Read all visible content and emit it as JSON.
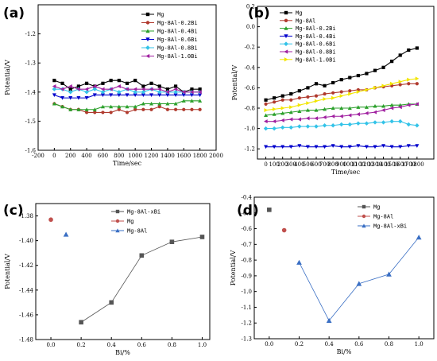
{
  "chart_data": [
    {
      "panel_label": "(a)",
      "type": "line",
      "xlabel": "Time/sec",
      "ylabel": "Potential/V",
      "xlim": [
        -200,
        2000
      ],
      "ylim": [
        -1.6,
        -1.1
      ],
      "xticks": [
        -200,
        0,
        200,
        400,
        600,
        800,
        1000,
        1200,
        1400,
        1600,
        1800,
        2000
      ],
      "xtick_labels": [
        "-200",
        "0",
        "200",
        "400",
        "600",
        "800",
        "1000",
        "1200",
        "1400",
        "1600",
        "1800",
        "2000"
      ],
      "yticks": [
        -1.6,
        -1.5,
        -1.4,
        -1.3,
        -1.2
      ],
      "ytick_labels": [
        "-1.6",
        "-1.5",
        "-1.4",
        "-1.3",
        "-1.2"
      ],
      "series": [
        {
          "name": "Mg",
          "color": "#000000",
          "marker": "square",
          "x": [
            0,
            100,
            200,
            300,
            400,
            500,
            600,
            700,
            800,
            900,
            1000,
            1100,
            1200,
            1300,
            1400,
            1500,
            1600,
            1700,
            1800
          ],
          "y": [
            -1.36,
            -1.37,
            -1.39,
            -1.38,
            -1.37,
            -1.38,
            -1.37,
            -1.36,
            -1.36,
            -1.37,
            -1.36,
            -1.38,
            -1.37,
            -1.38,
            -1.39,
            -1.38,
            -1.4,
            -1.39,
            -1.39
          ]
        },
        {
          "name": "Mg-8Al-0.2Bi",
          "color": "#b03a2e",
          "marker": "circle",
          "x": [
            0,
            100,
            200,
            300,
            400,
            500,
            600,
            700,
            800,
            900,
            1000,
            1100,
            1200,
            1300,
            1400,
            1500,
            1600,
            1700,
            1800
          ],
          "y": [
            -1.44,
            -1.45,
            -1.46,
            -1.46,
            -1.47,
            -1.47,
            -1.47,
            -1.47,
            -1.46,
            -1.47,
            -1.46,
            -1.46,
            -1.46,
            -1.45,
            -1.46,
            -1.46,
            -1.46,
            -1.46,
            -1.46
          ]
        },
        {
          "name": "Mg-8Al-0.4Bi",
          "color": "#2ca02c",
          "marker": "triangle-up",
          "x": [
            0,
            100,
            200,
            300,
            400,
            500,
            600,
            700,
            800,
            900,
            1000,
            1100,
            1200,
            1300,
            1400,
            1500,
            1600,
            1700,
            1800
          ],
          "y": [
            -1.44,
            -1.45,
            -1.46,
            -1.46,
            -1.46,
            -1.46,
            -1.45,
            -1.45,
            -1.45,
            -1.45,
            -1.45,
            -1.44,
            -1.44,
            -1.44,
            -1.44,
            -1.44,
            -1.43,
            -1.43,
            -1.43
          ]
        },
        {
          "name": "Mg-8Al-0.6Bi",
          "color": "#0000cc",
          "marker": "triangle-down",
          "x": [
            0,
            100,
            200,
            300,
            400,
            500,
            600,
            700,
            800,
            900,
            1000,
            1100,
            1200,
            1300,
            1400,
            1500,
            1600,
            1700,
            1800
          ],
          "y": [
            -1.41,
            -1.42,
            -1.42,
            -1.42,
            -1.42,
            -1.41,
            -1.41,
            -1.41,
            -1.41,
            -1.41,
            -1.41,
            -1.41,
            -1.41,
            -1.41,
            -1.41,
            -1.41,
            -1.41,
            -1.41,
            -1.41
          ]
        },
        {
          "name": "Mg-8Al-0.8Bi",
          "color": "#33c3e8",
          "marker": "diamond",
          "x": [
            0,
            100,
            200,
            300,
            400,
            500,
            600,
            700,
            800,
            900,
            1000,
            1100,
            1200,
            1300,
            1400,
            1500,
            1600,
            1700,
            1800
          ],
          "y": [
            -1.39,
            -1.39,
            -1.4,
            -1.39,
            -1.4,
            -1.39,
            -1.4,
            -1.39,
            -1.4,
            -1.39,
            -1.4,
            -1.4,
            -1.39,
            -1.4,
            -1.4,
            -1.4,
            -1.4,
            -1.4,
            -1.4
          ]
        },
        {
          "name": "Mg-8Al-1.0Bi",
          "color": "#a020a0",
          "marker": "triangle-left",
          "x": [
            0,
            100,
            200,
            300,
            400,
            500,
            600,
            700,
            800,
            900,
            1000,
            1100,
            1200,
            1300,
            1400,
            1500,
            1600,
            1700,
            1800
          ],
          "y": [
            -1.38,
            -1.39,
            -1.38,
            -1.39,
            -1.39,
            -1.38,
            -1.39,
            -1.39,
            -1.38,
            -1.39,
            -1.39,
            -1.39,
            -1.39,
            -1.39,
            -1.4,
            -1.39,
            -1.4,
            -1.4,
            -1.4
          ]
        }
      ]
    },
    {
      "panel_label": "(b)",
      "type": "line",
      "xlabel": "Time/sec",
      "ylabel": "Potential/V",
      "xlim": [
        -100,
        2000
      ],
      "ylim": [
        -1.3,
        0.2
      ],
      "xticks": [
        0,
        100,
        200,
        300,
        400,
        500,
        600,
        700,
        800,
        900,
        1000,
        1100,
        1200,
        1300,
        1400,
        1500,
        1600,
        1700,
        1800
      ],
      "xtick_labels": [
        "0",
        "100",
        "200",
        "300",
        "400",
        "500",
        "600",
        "700",
        "800",
        "900",
        "1000",
        "1100",
        "1200",
        "1300",
        "1400",
        "1500",
        "1600",
        "1700",
        "1800"
      ],
      "yticks": [
        -1.2,
        -1.0,
        -0.8,
        -0.6,
        -0.4,
        -0.2,
        0.0,
        0.2
      ],
      "ytick_labels": [
        "-1.2",
        "-1.0",
        "-0.8",
        "-0.6",
        "-0.4",
        "-0.2",
        "0.0",
        "0.2"
      ],
      "series": [
        {
          "name": "Mg",
          "color": "#000000",
          "marker": "square",
          "x": [
            0,
            100,
            200,
            300,
            400,
            500,
            600,
            700,
            800,
            900,
            1000,
            1100,
            1200,
            1300,
            1400,
            1500,
            1600,
            1700,
            1800
          ],
          "y": [
            -0.72,
            -0.7,
            -0.68,
            -0.66,
            -0.63,
            -0.6,
            -0.56,
            -0.58,
            -0.55,
            -0.52,
            -0.5,
            -0.48,
            -0.46,
            -0.43,
            -0.4,
            -0.34,
            -0.28,
            -0.23,
            -0.21
          ]
        },
        {
          "name": "Mg-8Al",
          "color": "#b03a2e",
          "marker": "circle",
          "x": [
            0,
            100,
            200,
            300,
            400,
            500,
            600,
            700,
            800,
            900,
            1000,
            1100,
            1200,
            1300,
            1400,
            1500,
            1600,
            1700,
            1800
          ],
          "y": [
            -0.76,
            -0.74,
            -0.72,
            -0.72,
            -0.7,
            -0.69,
            -0.68,
            -0.66,
            -0.65,
            -0.64,
            -0.63,
            -0.62,
            -0.62,
            -0.6,
            -0.59,
            -0.58,
            -0.57,
            -0.56,
            -0.56
          ]
        },
        {
          "name": "Mg-8Al-0.2Bi",
          "color": "#2ca02c",
          "marker": "triangle-up",
          "x": [
            0,
            100,
            200,
            300,
            400,
            500,
            600,
            700,
            800,
            900,
            1000,
            1100,
            1200,
            1300,
            1400,
            1500,
            1600,
            1700,
            1800
          ],
          "y": [
            -0.87,
            -0.86,
            -0.85,
            -0.84,
            -0.83,
            -0.82,
            -0.82,
            -0.81,
            -0.8,
            -0.8,
            -0.8,
            -0.79,
            -0.79,
            -0.78,
            -0.78,
            -0.77,
            -0.77,
            -0.76,
            -0.76
          ]
        },
        {
          "name": "Mg-8Al-0.4Bi",
          "color": "#0000cc",
          "marker": "triangle-down",
          "x": [
            0,
            100,
            200,
            300,
            400,
            500,
            600,
            700,
            800,
            900,
            1000,
            1100,
            1200,
            1300,
            1400,
            1500,
            1600,
            1700,
            1800
          ],
          "y": [
            -1.18,
            -1.18,
            -1.18,
            -1.18,
            -1.17,
            -1.18,
            -1.18,
            -1.18,
            -1.17,
            -1.18,
            -1.18,
            -1.17,
            -1.18,
            -1.18,
            -1.17,
            -1.18,
            -1.18,
            -1.17,
            -1.17
          ]
        },
        {
          "name": "Mg-8Al-0.6Bi",
          "color": "#33c3e8",
          "marker": "diamond",
          "x": [
            0,
            100,
            200,
            300,
            400,
            500,
            600,
            700,
            800,
            900,
            1000,
            1100,
            1200,
            1300,
            1400,
            1500,
            1600,
            1700,
            1800
          ],
          "y": [
            -1.0,
            -1.0,
            -0.99,
            -0.99,
            -0.98,
            -0.98,
            -0.98,
            -0.97,
            -0.97,
            -0.96,
            -0.96,
            -0.95,
            -0.95,
            -0.94,
            -0.94,
            -0.93,
            -0.93,
            -0.96,
            -0.97
          ]
        },
        {
          "name": "Mg-8Al-0.8Bi",
          "color": "#a020a0",
          "marker": "triangle-left",
          "x": [
            0,
            100,
            200,
            300,
            400,
            500,
            600,
            700,
            800,
            900,
            1000,
            1100,
            1200,
            1300,
            1400,
            1500,
            1600,
            1700,
            1800
          ],
          "y": [
            -0.93,
            -0.93,
            -0.92,
            -0.91,
            -0.91,
            -0.9,
            -0.9,
            -0.89,
            -0.88,
            -0.88,
            -0.87,
            -0.86,
            -0.85,
            -0.84,
            -0.82,
            -0.8,
            -0.79,
            -0.77,
            -0.76
          ]
        },
        {
          "name": "Mg-8Al-1.0Bi",
          "color": "#f2e600",
          "marker": "triangle-right",
          "x": [
            0,
            100,
            200,
            300,
            400,
            500,
            600,
            700,
            800,
            900,
            1000,
            1100,
            1200,
            1300,
            1400,
            1500,
            1600,
            1700,
            1800
          ],
          "y": [
            -0.82,
            -0.81,
            -0.8,
            -0.79,
            -0.77,
            -0.75,
            -0.73,
            -0.71,
            -0.7,
            -0.68,
            -0.66,
            -0.64,
            -0.62,
            -0.6,
            -0.58,
            -0.56,
            -0.54,
            -0.52,
            -0.51
          ]
        }
      ]
    },
    {
      "panel_label": "(c)",
      "type": "scatter",
      "xlabel": "Bi/%",
      "ylabel": "Potential/V",
      "xlim": [
        -0.1,
        1.05
      ],
      "ylim": [
        -1.48,
        -1.37
      ],
      "xticks": [
        0.0,
        0.2,
        0.4,
        0.6,
        0.8,
        1.0
      ],
      "xtick_labels": [
        "0.0",
        "0.2",
        "0.4",
        "0.6",
        "0.8",
        "1.0"
      ],
      "yticks": [
        -1.48,
        -1.46,
        -1.44,
        -1.42,
        -1.4,
        -1.38
      ],
      "ytick_labels": [
        "-1.48",
        "-1.46",
        "-1.44",
        "-1.42",
        "-1.40",
        "-1.38"
      ],
      "series": [
        {
          "name": "Mg-8Al-xBi",
          "color": "#555555",
          "marker": "square",
          "line": true,
          "x": [
            0.2,
            0.4,
            0.6,
            0.8,
            1.0
          ],
          "y": [
            -1.466,
            -1.45,
            -1.412,
            -1.401,
            -1.397
          ]
        },
        {
          "name": "Mg",
          "color": "#c0504d",
          "marker": "circle",
          "line": false,
          "x": [
            0.0
          ],
          "y": [
            -1.383
          ]
        },
        {
          "name": "Mg-8Al",
          "color": "#3a6fc4",
          "marker": "triangle-up",
          "line": false,
          "x": [
            0.1
          ],
          "y": [
            -1.395
          ]
        }
      ]
    },
    {
      "panel_label": "(d)",
      "type": "scatter",
      "xlabel": "Bi/%",
      "ylabel": "Potential/V",
      "xlim": [
        -0.1,
        1.1
      ],
      "ylim": [
        -1.3,
        -0.4
      ],
      "xticks": [
        0.0,
        0.2,
        0.4,
        0.6,
        0.8,
        1.0
      ],
      "xtick_labels": [
        "0.0",
        "0.2",
        "0.4",
        "0.6",
        "0.8",
        "1.0"
      ],
      "yticks": [
        -1.3,
        -1.2,
        -1.1,
        -1.0,
        -0.9,
        -0.8,
        -0.7,
        -0.6,
        -0.5,
        -0.4
      ],
      "ytick_labels": [
        "-1.3",
        "-1.2",
        "-1.1",
        "-1.0",
        "-0.9",
        "-0.8",
        "-0.7",
        "-0.6",
        "-0.5",
        "-0.4"
      ],
      "series": [
        {
          "name": "Mg",
          "color": "#555555",
          "marker": "square",
          "line": false,
          "x": [
            0.0
          ],
          "y": [
            -0.48
          ]
        },
        {
          "name": "Mg-8Al",
          "color": "#c0504d",
          "marker": "circle",
          "line": false,
          "x": [
            0.1
          ],
          "y": [
            -0.61
          ]
        },
        {
          "name": "Mg-8Al-xBi",
          "color": "#3a6fc4",
          "marker": "triangle-up",
          "line": true,
          "x": [
            0.2,
            0.4,
            0.6,
            0.8,
            1.0
          ],
          "y": [
            -0.815,
            -1.185,
            -0.95,
            -0.89,
            -0.655
          ]
        }
      ]
    }
  ]
}
